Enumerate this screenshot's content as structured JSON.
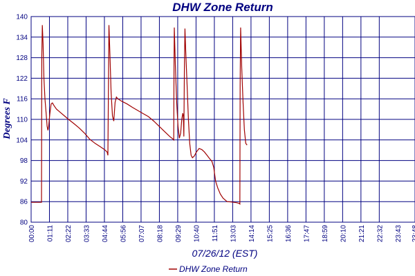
{
  "chart_data": {
    "type": "line",
    "title": "DHW Zone Return",
    "xlabel": "07/26/12 (EST)",
    "ylabel": "Degrees F",
    "ylim": [
      80,
      140
    ],
    "xlim_minutes": [
      0,
      1440
    ],
    "yticks": [
      "80",
      "86",
      "92",
      "98",
      "104",
      "110",
      "116",
      "122",
      "128",
      "134",
      "140"
    ],
    "xticks": [
      "00:00",
      "01:11",
      "02:22",
      "03:33",
      "04:44",
      "05:56",
      "07:07",
      "08:18",
      "09:29",
      "10:40",
      "11:51",
      "13:03",
      "14:14",
      "15:25",
      "16:36",
      "17:47",
      "18:59",
      "20:10",
      "21:21",
      "22:32",
      "23:43",
      "23:48"
    ],
    "grid": true,
    "legend": "bottom-center",
    "colors": {
      "line": "#a00000",
      "grid": "#000080",
      "text": "#000080"
    },
    "series": [
      {
        "name": "DHW Zone Return",
        "points": [
          [
            0,
            85.8
          ],
          [
            38,
            85.8
          ],
          [
            39,
            85.8
          ],
          [
            40,
            128
          ],
          [
            42,
            137.5
          ],
          [
            45,
            132
          ],
          [
            48,
            122
          ],
          [
            52,
            116
          ],
          [
            56,
            112
          ],
          [
            60,
            108
          ],
          [
            63,
            106.8
          ],
          [
            66,
            108
          ],
          [
            70,
            111.5
          ],
          [
            75,
            114.5
          ],
          [
            80,
            114.8
          ],
          [
            86,
            114
          ],
          [
            95,
            113
          ],
          [
            110,
            112
          ],
          [
            125,
            111
          ],
          [
            140,
            110
          ],
          [
            160,
            108.8
          ],
          [
            180,
            107.5
          ],
          [
            200,
            106
          ],
          [
            220,
            104.2
          ],
          [
            240,
            103
          ],
          [
            260,
            102
          ],
          [
            275,
            101.2
          ],
          [
            285,
            100.5
          ],
          [
            288,
            99.5
          ],
          [
            290,
            120
          ],
          [
            292,
            137.5
          ],
          [
            296,
            128
          ],
          [
            300,
            118
          ],
          [
            305,
            111
          ],
          [
            310,
            109.5
          ],
          [
            315,
            115
          ],
          [
            320,
            116.5
          ],
          [
            325,
            116
          ],
          [
            340,
            115.3
          ],
          [
            360,
            114.5
          ],
          [
            380,
            113.5
          ],
          [
            400,
            112.6
          ],
          [
            420,
            111.7
          ],
          [
            440,
            110.8
          ],
          [
            460,
            109.5
          ],
          [
            480,
            108
          ],
          [
            500,
            106.5
          ],
          [
            520,
            105
          ],
          [
            533,
            104.2
          ],
          [
            535,
            104
          ],
          [
            536,
            126
          ],
          [
            537,
            136.8
          ],
          [
            541,
            126
          ],
          [
            546,
            115
          ],
          [
            551,
            108
          ],
          [
            556,
            104.5
          ],
          [
            561,
            106
          ],
          [
            565,
            110
          ],
          [
            569,
            111.8
          ],
          [
            571,
            111
          ],
          [
            573,
            105
          ],
          [
            575,
            125
          ],
          [
            577,
            136.5
          ],
          [
            580,
            130
          ],
          [
            585,
            120
          ],
          [
            590,
            110
          ],
          [
            595,
            103
          ],
          [
            600,
            99.5
          ],
          [
            605,
            98.8
          ],
          [
            612,
            99.3
          ],
          [
            620,
            100.5
          ],
          [
            630,
            101.5
          ],
          [
            640,
            101.2
          ],
          [
            650,
            100.5
          ],
          [
            660,
            99.5
          ],
          [
            670,
            98.5
          ],
          [
            678,
            97.8
          ],
          [
            685,
            96
          ],
          [
            692,
            92
          ],
          [
            700,
            90
          ],
          [
            710,
            88.2
          ],
          [
            720,
            87
          ],
          [
            735,
            86
          ],
          [
            750,
            85.9
          ],
          [
            770,
            85.7
          ],
          [
            780,
            85.5
          ],
          [
            783,
            85.3
          ],
          [
            784,
            120
          ],
          [
            786,
            136.8
          ],
          [
            790,
            125
          ],
          [
            795,
            115
          ],
          [
            800,
            107
          ],
          [
            805,
            103
          ],
          [
            810,
            102.5
          ]
        ]
      }
    ]
  }
}
